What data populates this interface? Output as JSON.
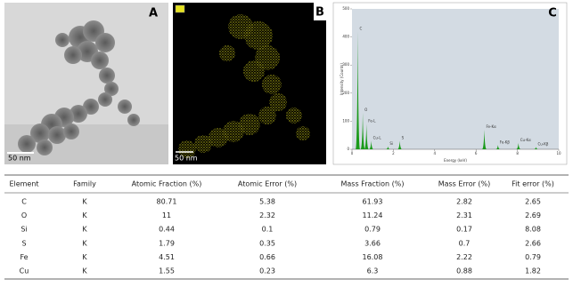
{
  "panels": {
    "a": {
      "label": "A",
      "scale_bar": "50 nm"
    },
    "b": {
      "label": "B",
      "scale_bar": "50 nm"
    },
    "c": {
      "label": "C",
      "spectrum": {
        "type": "bar",
        "xlabel": "Energy (keV)",
        "ylabel": "Intensity (Counts)",
        "xlim": [
          0,
          10
        ],
        "ylim": [
          0,
          500
        ],
        "xticks": [
          0,
          2,
          4,
          6,
          8,
          10
        ],
        "yticks": [
          0,
          100,
          200,
          300,
          400,
          500
        ],
        "color": "#1a9a1a",
        "peaks": [
          {
            "label": "C",
            "energy": 0.28,
            "counts": 420
          },
          {
            "label": "O",
            "energy": 0.52,
            "counts": 130
          },
          {
            "label": "Fe-L",
            "energy": 0.7,
            "counts": 90
          },
          {
            "label": "Cu-L",
            "energy": 0.93,
            "counts": 30
          },
          {
            "label": "Si",
            "energy": 1.74,
            "counts": 10
          },
          {
            "label": "S",
            "energy": 2.31,
            "counts": 30
          },
          {
            "label": "Fe-Kα",
            "energy": 6.4,
            "counts": 70
          },
          {
            "label": "Fe-Kβ",
            "energy": 7.06,
            "counts": 15
          },
          {
            "label": "Cu-Kα",
            "energy": 8.05,
            "counts": 22
          },
          {
            "label": "Cu-Kβ",
            "energy": 8.9,
            "counts": 8
          }
        ]
      }
    }
  },
  "table": {
    "header": [
      "Element",
      "Family",
      "Atomic Fraction (%)",
      "Atomic Error (%)",
      "Mass Fraction (%)",
      "Mass Error (%)",
      "Fit error (%)"
    ],
    "rows": [
      [
        "C",
        "K",
        80.71,
        5.38,
        61.93,
        2.82,
        2.65
      ],
      [
        "O",
        "K",
        11,
        2.32,
        11.24,
        2.31,
        2.69
      ],
      [
        "Si",
        "K",
        0.44,
        0.1,
        0.79,
        0.17,
        8.08
      ],
      [
        "S",
        "K",
        1.79,
        0.35,
        3.66,
        0.7,
        2.66
      ],
      [
        "Fe",
        "K",
        4.51,
        0.66,
        16.08,
        2.22,
        0.79
      ],
      [
        "Cu",
        "K",
        1.55,
        0.23,
        6.3,
        0.88,
        1.82
      ]
    ]
  }
}
